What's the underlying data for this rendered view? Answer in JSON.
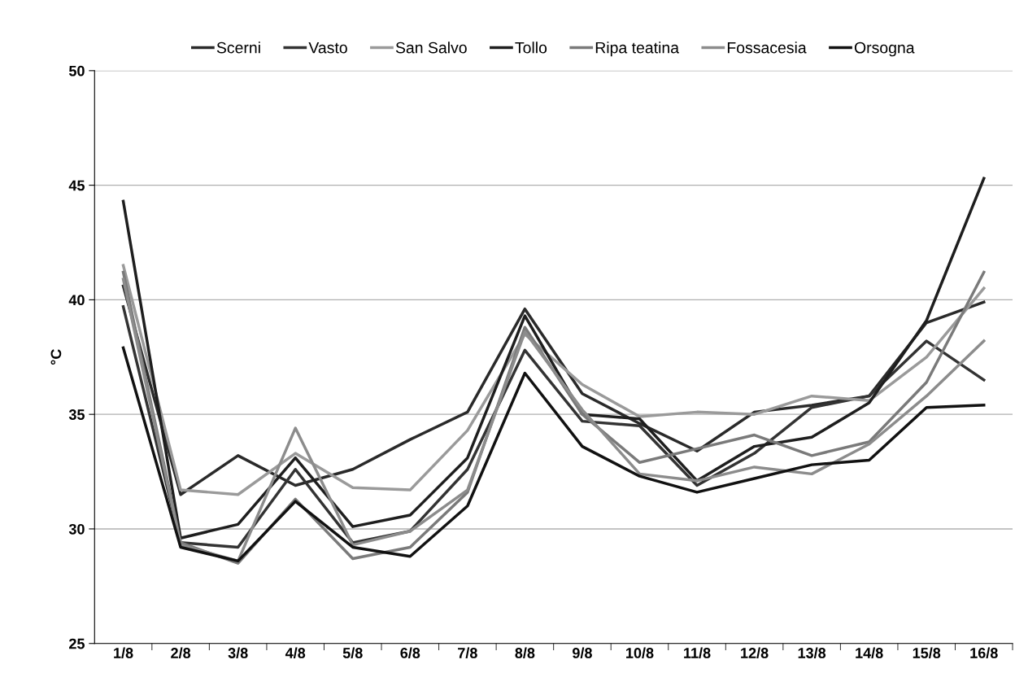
{
  "chart_data": {
    "type": "line",
    "ylabel": "°C",
    "categories": [
      "1/8",
      "2/8",
      "3/8",
      "4/8",
      "5/8",
      "6/8",
      "7/8",
      "8/8",
      "9/8",
      "10/8",
      "11/8",
      "12/8",
      "13/8",
      "14/8",
      "15/8",
      "16/8"
    ],
    "series": [
      {
        "name": "Scerni",
        "color": "#2a2a2a",
        "values": [
          40.6,
          31.5,
          33.2,
          31.9,
          32.6,
          33.9,
          35.1,
          39.6,
          35.9,
          34.6,
          33.4,
          35.1,
          35.4,
          35.8,
          39.0,
          39.9
        ]
      },
      {
        "name": "Vasto",
        "color": "#333333",
        "values": [
          39.7,
          29.4,
          29.2,
          32.6,
          29.4,
          29.9,
          32.6,
          37.8,
          34.7,
          34.5,
          31.9,
          33.3,
          35.3,
          35.8,
          38.2,
          36.5
        ]
      },
      {
        "name": "San Salvo",
        "color": "#9a9a9a",
        "values": [
          41.5,
          31.7,
          31.5,
          33.3,
          31.8,
          31.7,
          34.3,
          38.5,
          36.3,
          34.9,
          35.1,
          35.0,
          35.8,
          35.6,
          37.5,
          40.5
        ]
      },
      {
        "name": "Tollo",
        "color": "#1e1e1e",
        "values": [
          44.3,
          29.6,
          30.2,
          33.1,
          30.1,
          30.6,
          33.1,
          39.3,
          35.0,
          34.8,
          32.1,
          33.6,
          34.0,
          35.5,
          39.1,
          45.3
        ]
      },
      {
        "name": "Ripa teatina",
        "color": "#7a7a7a",
        "values": [
          41.2,
          29.4,
          28.5,
          31.3,
          28.7,
          29.2,
          31.6,
          38.8,
          35.0,
          32.9,
          33.5,
          34.1,
          33.2,
          33.8,
          36.4,
          41.2
        ]
      },
      {
        "name": "Fossacesia",
        "color": "#8c8c8c",
        "values": [
          40.9,
          29.3,
          28.6,
          34.4,
          29.3,
          29.9,
          31.7,
          38.6,
          35.2,
          32.4,
          32.1,
          32.7,
          32.4,
          33.7,
          35.8,
          38.2
        ]
      },
      {
        "name": "Orsogna",
        "color": "#111111",
        "values": [
          37.9,
          29.2,
          28.6,
          31.2,
          29.2,
          28.8,
          31.0,
          36.8,
          33.6,
          32.3,
          31.6,
          32.2,
          32.8,
          33.0,
          35.3,
          35.4
        ]
      }
    ],
    "ylim": [
      25,
      50
    ],
    "yticks": [
      25,
      30,
      35,
      40,
      45,
      50
    ],
    "grid": "y",
    "legend": "top",
    "marker": "none",
    "line_style": "solid"
  }
}
